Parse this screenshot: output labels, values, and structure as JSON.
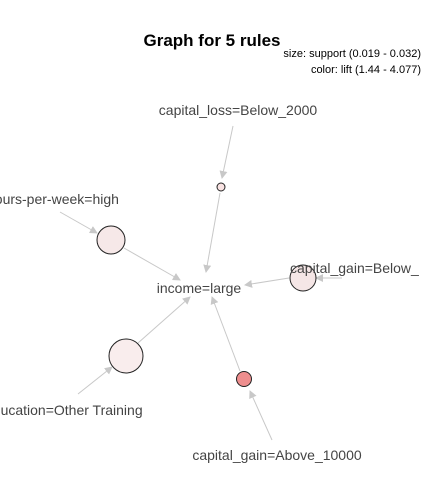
{
  "title": "Graph for 5 rules",
  "legend": {
    "size_text": "size: support (0.019 - 0.032)",
    "color_text": "color: lift (1.44 - 4.077)"
  },
  "items": {
    "capital_loss": "capital_loss=Below_2000",
    "hours_per_week": "hours-per-week=high",
    "income": "income=large",
    "capital_gain_below": "capital_gain=Below_",
    "education": "education=Other Training",
    "capital_gain_above": "capital_gain=Above_10000"
  },
  "rule_colors": {
    "r1": "#f9e3e3",
    "r2": "#f6e8e8",
    "r3": "#f5e6e6",
    "r4": "#f9eded",
    "r5": "#ee8e8e"
  },
  "edge_color": "#c8c8c8"
}
